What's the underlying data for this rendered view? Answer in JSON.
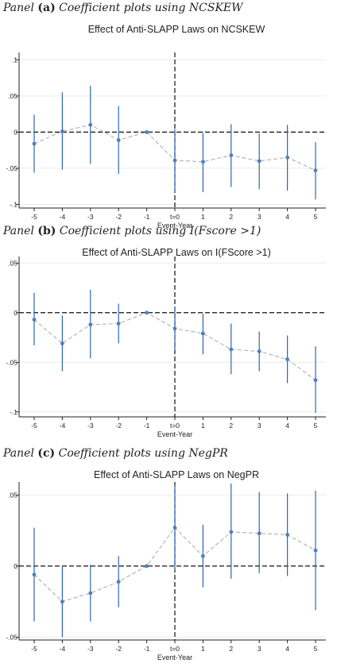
{
  "colors": {
    "marker": "#4f7fbf",
    "errorbar": "#2e67a8",
    "connector": "#a8a8a8",
    "grid": "#ececec",
    "axis": "#222222"
  },
  "chart_data": [
    {
      "type": "scatter",
      "panel": {
        "prefix": "Panel",
        "letter": "(a)",
        "description": "Coefficient plots using NCSKEW"
      },
      "title": "Effect of Anti-SLAPP Laws on NCSKEW",
      "xlabel": "Event-Year",
      "ylabel": "",
      "categories": [
        "-5",
        "-4",
        "-3",
        "-2",
        "-1",
        "t=0",
        "1",
        "2",
        "3",
        "4",
        "5"
      ],
      "y_ticks": [
        0.1,
        0.05,
        0,
        -0.05,
        -0.1
      ],
      "y_tick_labels": [
        ".1",
        ".05",
        "0",
        "-.05",
        "-.1"
      ],
      "ylim": [
        -0.105,
        0.108
      ],
      "series": [
        {
          "values": [
            -0.016,
            0.001,
            0.01,
            -0.011,
            0.0,
            -0.039,
            -0.041,
            -0.032,
            -0.04,
            -0.035,
            -0.053
          ],
          "lower": [
            -0.056,
            -0.052,
            -0.044,
            -0.058,
            0.0,
            -0.083,
            -0.083,
            -0.076,
            -0.079,
            -0.081,
            -0.093
          ],
          "upper": [
            0.024,
            0.055,
            0.064,
            0.036,
            0.0,
            0.004,
            -0.001,
            0.011,
            -0.002,
            0.01,
            -0.014
          ]
        }
      ],
      "grid": true,
      "reference_lines": {
        "horizontal": 0,
        "vertical": "t=0"
      }
    },
    {
      "type": "scatter",
      "panel": {
        "prefix": "Panel",
        "letter": "(b)",
        "description": "Coefficient plots using I(Fscore >1)"
      },
      "title": "Effect of Anti-SLAPP Laws on I(FScore >1)",
      "xlabel": "Event-Year",
      "ylabel": "",
      "categories": [
        "-5",
        "-4",
        "-3",
        "-2",
        "-1",
        "t=0",
        "1",
        "2",
        "3",
        "4",
        "5"
      ],
      "y_ticks": [
        0.05,
        0,
        -0.05,
        -0.1
      ],
      "y_tick_labels": [
        ".05",
        "0",
        "-.05",
        "-.1"
      ],
      "ylim": [
        -0.105,
        0.055
      ],
      "series": [
        {
          "values": [
            -0.007,
            -0.031,
            -0.012,
            -0.011,
            0.0,
            -0.016,
            -0.021,
            -0.037,
            -0.039,
            -0.047,
            -0.068
          ],
          "lower": [
            -0.033,
            -0.059,
            -0.046,
            -0.031,
            0.0,
            -0.038,
            -0.042,
            -0.062,
            -0.059,
            -0.071,
            -0.101
          ],
          "upper": [
            0.02,
            -0.003,
            0.023,
            0.009,
            0.0,
            0.006,
            -0.001,
            -0.011,
            -0.019,
            -0.023,
            -0.034
          ]
        }
      ],
      "grid": true,
      "reference_lines": {
        "horizontal": 0,
        "vertical": "t=0"
      }
    },
    {
      "type": "scatter",
      "panel": {
        "prefix": "Panel",
        "letter": "(c)",
        "description": "Coefficient plots using NegPR"
      },
      "title": "Effect of Anti-SLAPP Laws on NegPR",
      "xlabel": "Event-Year",
      "ylabel": "",
      "categories": [
        "-5",
        "-4",
        "-3",
        "-2",
        "-1",
        "t=0",
        "1",
        "2",
        "3",
        "4",
        "5"
      ],
      "y_ticks": [
        0.05,
        0,
        -0.05
      ],
      "y_tick_labels": [
        ".05",
        "0",
        "-.05"
      ],
      "ylim": [
        -0.052,
        0.058
      ],
      "series": [
        {
          "values": [
            -0.006,
            -0.025,
            -0.019,
            -0.011,
            0.0,
            0.027,
            0.007,
            0.024,
            0.023,
            0.022,
            0.011
          ],
          "lower": [
            -0.039,
            -0.05,
            -0.039,
            -0.029,
            0.0,
            -0.003,
            -0.015,
            -0.009,
            -0.005,
            -0.007,
            -0.031
          ],
          "upper": [
            0.027,
            0.0,
            0.001,
            0.007,
            0.0,
            0.057,
            0.029,
            0.058,
            0.052,
            0.051,
            0.053
          ]
        }
      ],
      "grid": true,
      "reference_lines": {
        "horizontal": 0,
        "vertical": "t=0"
      }
    }
  ]
}
